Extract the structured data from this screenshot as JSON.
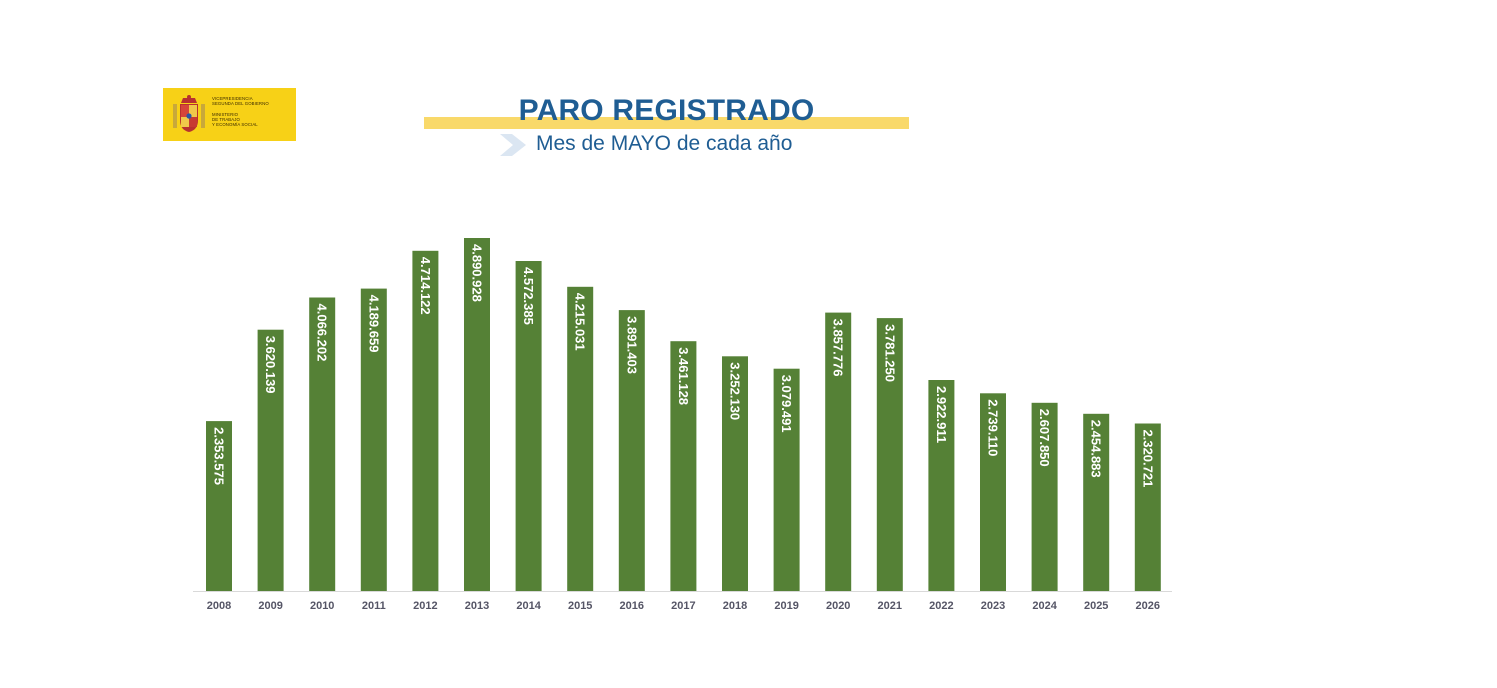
{
  "logo": {
    "lines": [
      "Vicepresidencia",
      "Segunda del Gobierno",
      "",
      "Ministerio",
      "de Trabajo",
      "y Economía Social"
    ]
  },
  "header": {
    "title": "PARO REGISTRADO",
    "subtitle": "Mes de MAYO de cada año"
  },
  "colors": {
    "bar": "#558136",
    "title": "#1f5d93",
    "title_highlight": "#f9d96a",
    "logo_background": "#f7d117"
  },
  "chart_data": {
    "type": "bar",
    "title": "PARO REGISTRADO",
    "subtitle": "Mes de MAYO de cada año",
    "xlabel": "",
    "ylabel": "",
    "ylim": [
      0,
      5200000
    ],
    "grid": false,
    "categories": [
      "2008",
      "2009",
      "2010",
      "2011",
      "2012",
      "2013",
      "2014",
      "2015",
      "2016",
      "2017",
      "2018",
      "2019",
      "2020",
      "2021",
      "2022",
      "2023",
      "2024",
      "2025",
      "2026"
    ],
    "values": [
      2353575,
      3620139,
      4066202,
      4189659,
      4714122,
      4890928,
      4572385,
      4215031,
      3891403,
      3461128,
      3252130,
      3079491,
      3857776,
      3781250,
      2922911,
      2739110,
      2607850,
      2454883,
      2320721
    ],
    "data_labels": [
      "2.353.575",
      "3.620.139",
      "4.066.202",
      "4.189.659",
      "4.714.122",
      "4.890.928",
      "4.572.385",
      "4.215.031",
      "3.891.403",
      "3.461.128",
      "3.252.130",
      "3.079.491",
      "3.857.776",
      "3.781.250",
      "2.922.911",
      "2.739.110",
      "2.607.850",
      "2.454.883",
      "2.320.721"
    ]
  }
}
